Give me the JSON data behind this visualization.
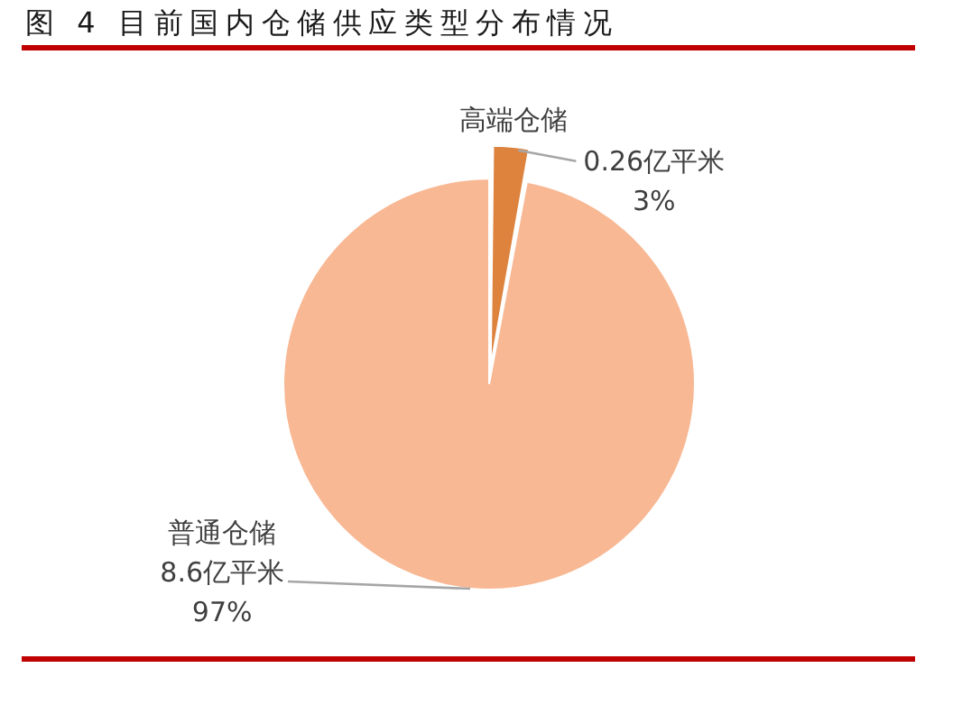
{
  "chart_data": {
    "type": "pie",
    "title": "图 4 目前国内仓储供应类型分布情况",
    "categories": [
      "高端仓储",
      "普通仓储"
    ],
    "values": [
      0.26,
      8.6
    ],
    "colors": [
      "#dd833e",
      "#f8b894"
    ],
    "value_labels": [
      "0.26亿平米\n3%",
      "8.6亿平米\n97%"
    ],
    "legend": false
  }
}
